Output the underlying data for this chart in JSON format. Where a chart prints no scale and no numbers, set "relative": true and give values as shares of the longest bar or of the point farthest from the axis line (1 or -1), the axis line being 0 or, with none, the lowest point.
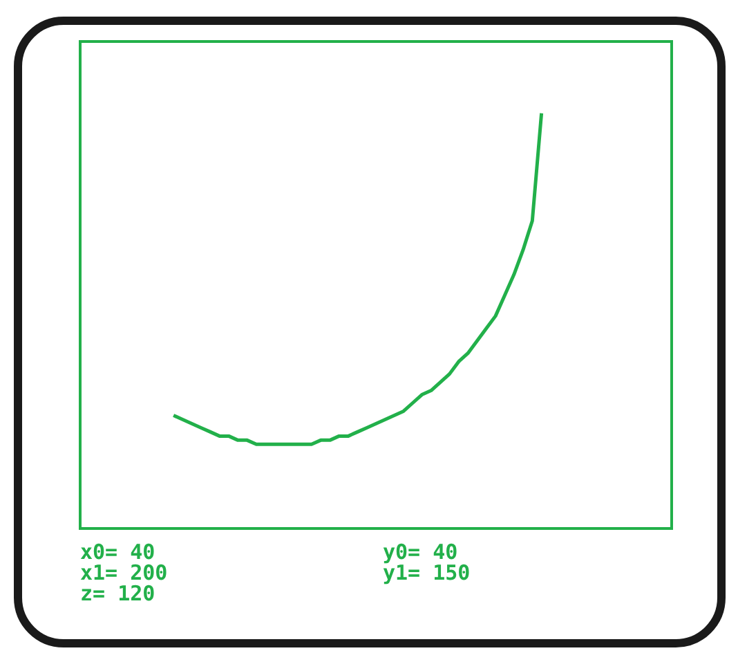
{
  "chart_data": {
    "type": "line",
    "relative": true,
    "legend": false,
    "marker": "none",
    "categories": [
      null,
      null,
      null,
      null,
      null,
      null,
      null,
      null,
      null,
      null,
      null,
      null,
      null,
      null,
      null,
      null,
      null,
      null,
      null,
      null,
      null,
      null,
      null,
      null,
      null,
      null,
      null,
      null,
      null,
      null,
      null,
      null,
      null,
      null,
      null,
      null,
      null,
      null,
      null,
      null,
      null,
      null,
      null,
      null,
      null,
      null,
      null,
      null,
      null,
      null,
      null,
      null,
      null,
      null,
      null,
      null,
      null,
      null,
      null,
      null,
      null,
      null,
      null,
      null,
      null
    ],
    "series": [
      {
        "color": "#22b04a",
        "values": [
          null,
          null,
          null,
          null,
          null,
          null,
          null,
          null,
          null,
          null,
          0.27,
          0.26,
          0.25,
          0.24,
          0.23,
          0.22,
          0.22,
          0.21,
          0.21,
          0.2,
          0.2,
          0.2,
          0.2,
          0.2,
          0.2,
          0.2,
          0.21,
          0.21,
          0.22,
          0.22,
          0.23,
          0.24,
          0.25,
          0.26,
          0.27,
          0.28,
          0.3,
          0.32,
          0.33,
          0.35,
          0.37,
          0.4,
          0.42,
          0.45,
          0.48,
          0.51,
          0.56,
          0.61,
          0.67,
          0.74,
          1,
          null,
          null,
          null,
          null,
          null,
          null,
          null,
          null,
          null,
          null,
          null,
          null,
          null,
          null
        ]
      }
    ],
    "annotations": [
      "x0= 40",
      "y0= 40",
      "x1= 200",
      "y1= 150",
      "z= 120"
    ]
  }
}
